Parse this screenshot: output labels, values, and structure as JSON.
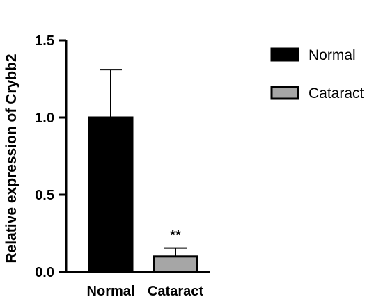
{
  "chart_data": {
    "type": "bar",
    "categories": [
      "Normal",
      "Cataract"
    ],
    "values": [
      1.0,
      0.1
    ],
    "error_upper": [
      1.31,
      0.155
    ],
    "annotations": [
      "",
      "**"
    ],
    "ylabel": "Relative expression of Crybb2",
    "xlabel": "",
    "ylim": [
      0,
      1.5
    ],
    "yticks": [
      "0.0",
      "0.5",
      "1.0",
      "1.5"
    ],
    "legend": {
      "position": "right",
      "entries": [
        {
          "label": "Normal",
          "color": "#000000"
        },
        {
          "label": "Cataract",
          "color": "#a6a6a6"
        }
      ]
    },
    "grid": false
  }
}
